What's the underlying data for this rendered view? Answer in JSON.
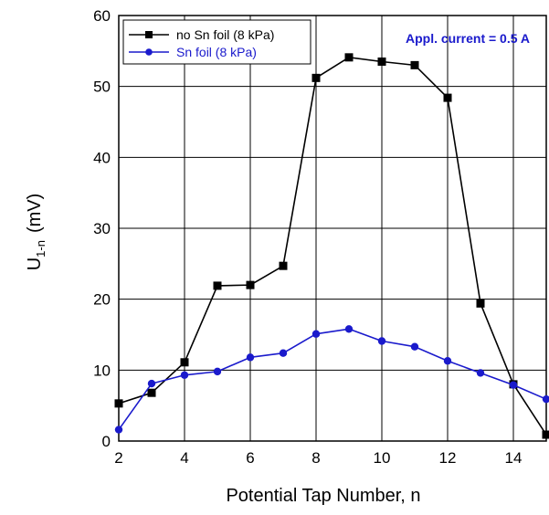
{
  "chart_data": {
    "type": "line",
    "title": "",
    "xlabel": "Potential Tap Number, n",
    "ylabel": {
      "main": "U",
      "subscript": "1-n",
      "unit": "(mV)"
    },
    "xlim": [
      2,
      15
    ],
    "ylim": [
      0,
      60
    ],
    "xticks": [
      2,
      4,
      6,
      8,
      10,
      12,
      14
    ],
    "yticks": [
      0,
      10,
      20,
      30,
      40,
      50,
      60
    ],
    "grid": true,
    "legend_position": "top-left",
    "annotation": {
      "text": "Appl. current = 0.5 A",
      "color": "#1a1acc"
    },
    "series": [
      {
        "name": "no Sn foil (8 kPa)",
        "color": "#000000",
        "marker": "square",
        "x": [
          2,
          3,
          4,
          5,
          6,
          7,
          8,
          9,
          10,
          11,
          12,
          13,
          14,
          15
        ],
        "y": [
          5.3,
          6.8,
          11.1,
          21.9,
          22.0,
          24.7,
          51.2,
          54.1,
          53.5,
          53.0,
          48.4,
          19.4,
          8.0,
          0.9
        ]
      },
      {
        "name": "Sn foil (8 kPa)",
        "color": "#1a1acc",
        "marker": "circle",
        "x": [
          2,
          3,
          4,
          5,
          6,
          7,
          8,
          9,
          10,
          11,
          12,
          13,
          14,
          15
        ],
        "y": [
          1.6,
          8.1,
          9.3,
          9.8,
          11.8,
          12.4,
          15.1,
          15.8,
          14.1,
          13.3,
          11.3,
          9.6,
          7.9,
          5.9
        ]
      }
    ]
  }
}
